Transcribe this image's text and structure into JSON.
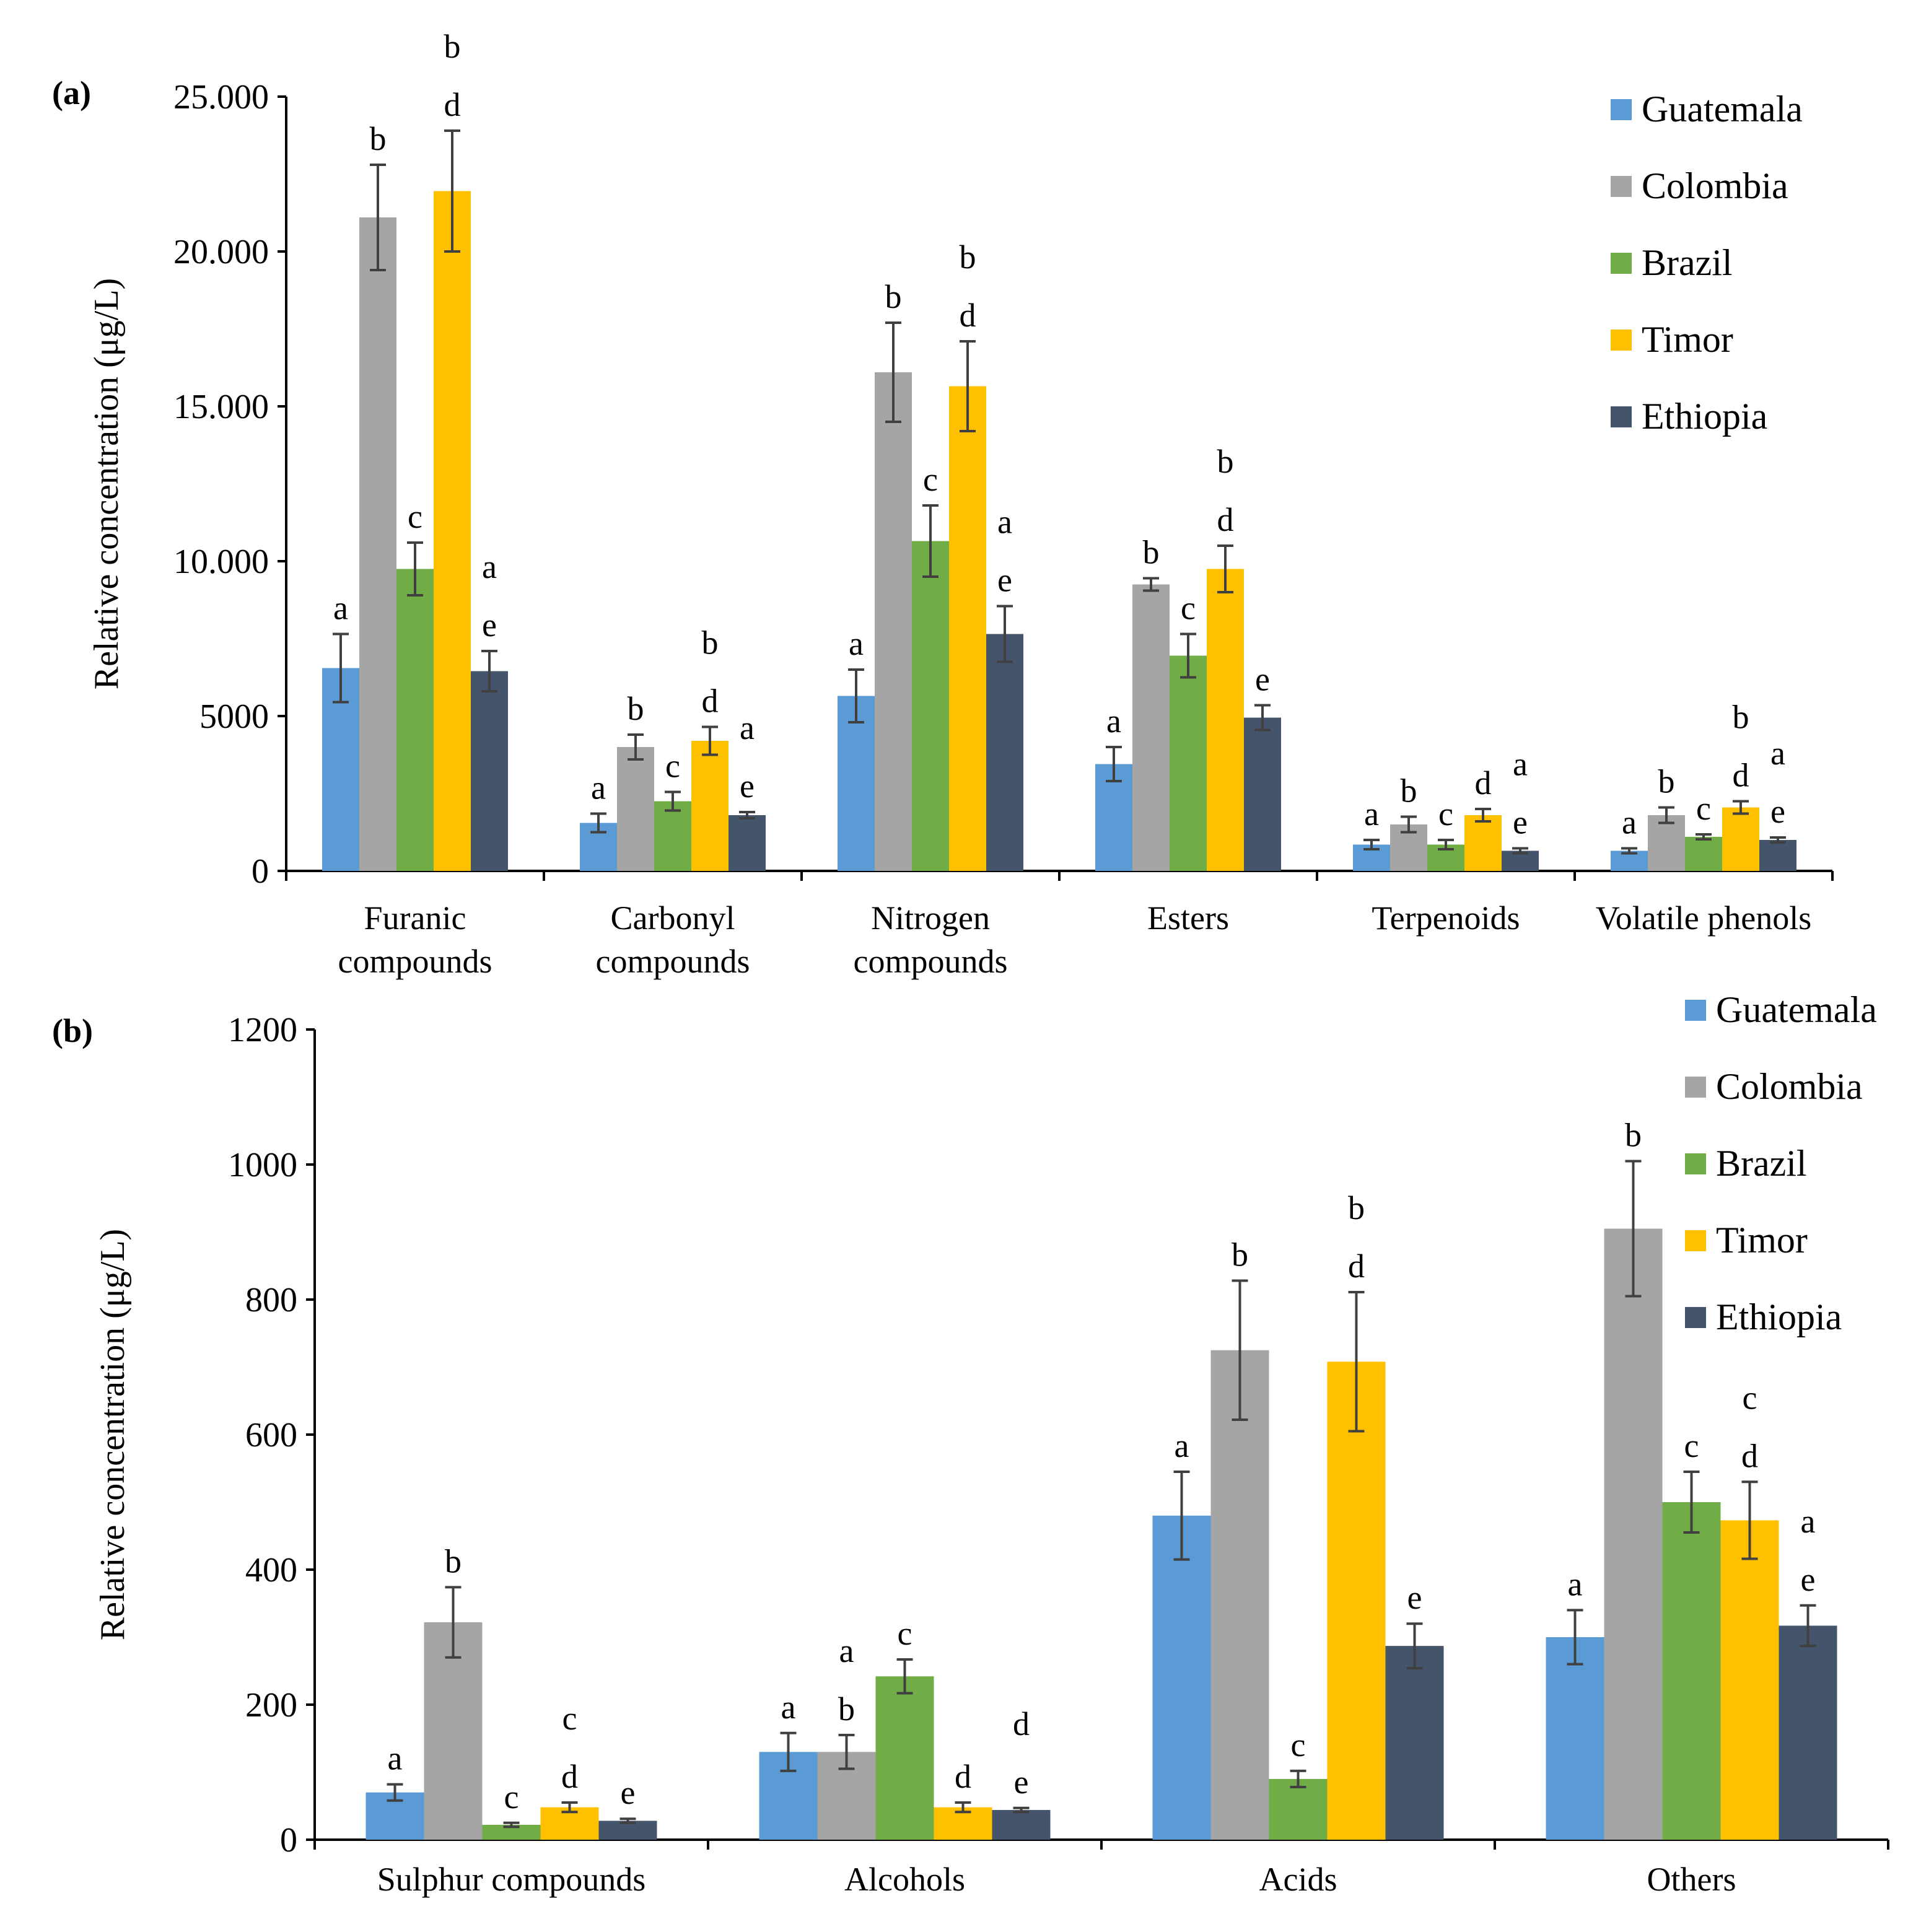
{
  "colors": {
    "Guatemala": "#5b9bd5",
    "Colombia": "#a5a5a5",
    "Brazil": "#70ad47",
    "Timor": "#ffc000",
    "Ethiopia": "#44546a"
  },
  "chart_data": [
    {
      "type": "bar",
      "panel": "(a)",
      "ylabel": "Relative concentration (μg/L)",
      "ylim": [
        0,
        25000
      ],
      "yticks": [
        {
          "value": 0,
          "label": "0"
        },
        {
          "value": 5000,
          "label": "5000"
        },
        {
          "value": 10000,
          "label": "10.000"
        },
        {
          "value": 15000,
          "label": "15.000"
        },
        {
          "value": 20000,
          "label": "20.000"
        },
        {
          "value": 25000,
          "label": "25.000"
        }
      ],
      "legend": [
        "Guatemala",
        "Colombia",
        "Brazil",
        "Timor",
        "Ethiopia"
      ],
      "legend_position": "top-right",
      "categories": [
        [
          "Furanic",
          "compounds"
        ],
        [
          "Carbonyl",
          "compounds"
        ],
        [
          "Nitrogen",
          "compounds"
        ],
        [
          "Esters"
        ],
        [
          "Terpenoids"
        ],
        [
          "Volatile phenols"
        ]
      ],
      "series": [
        {
          "name": "Guatemala",
          "values": [
            6550,
            1550,
            5650,
            3450,
            850,
            650
          ],
          "errors": [
            1100,
            300,
            850,
            550,
            150,
            80
          ],
          "letters": [
            "a",
            "a",
            "a",
            "a",
            "a",
            "a"
          ]
        },
        {
          "name": "Colombia",
          "values": [
            21100,
            4000,
            16100,
            9250,
            1500,
            1800
          ],
          "errors": [
            1700,
            400,
            1600,
            200,
            250,
            250
          ],
          "letters": [
            "b",
            "b",
            "b",
            "b",
            "b",
            "b"
          ]
        },
        {
          "name": "Brazil",
          "values": [
            9750,
            2250,
            10650,
            6950,
            850,
            1100
          ],
          "errors": [
            850,
            300,
            1150,
            700,
            150,
            80
          ],
          "letters": [
            "c",
            "c",
            "c",
            "c",
            "c",
            "c"
          ]
        },
        {
          "name": "Timor",
          "values": [
            21950,
            4200,
            15650,
            9750,
            1800,
            2050
          ],
          "errors": [
            1950,
            450,
            1450,
            750,
            200,
            200
          ],
          "letters": [
            "b d",
            "b d",
            "b d",
            "b d",
            "d",
            "b d"
          ]
        },
        {
          "name": "Ethiopia",
          "values": [
            6450,
            1800,
            7650,
            4950,
            650,
            1000
          ],
          "errors": [
            650,
            100,
            900,
            400,
            80,
            80
          ],
          "letters": [
            "a e",
            "a e",
            "a e",
            "e",
            "a e",
            "a e"
          ]
        }
      ]
    },
    {
      "type": "bar",
      "panel": "(b)",
      "ylabel": "Relative concentration (μg/L)",
      "ylim": [
        0,
        1200
      ],
      "yticks": [
        {
          "value": 0,
          "label": "0"
        },
        {
          "value": 200,
          "label": "200"
        },
        {
          "value": 400,
          "label": "400"
        },
        {
          "value": 600,
          "label": "600"
        },
        {
          "value": 800,
          "label": "800"
        },
        {
          "value": 1000,
          "label": "1000"
        },
        {
          "value": 1200,
          "label": "1200"
        }
      ],
      "legend": [
        "Guatemala",
        "Colombia",
        "Brazil",
        "Timor",
        "Ethiopia"
      ],
      "legend_position": "top-right",
      "categories": [
        [
          "Sulphur compounds"
        ],
        [
          "Alcohols"
        ],
        [
          "Acids"
        ],
        [
          "Others"
        ]
      ],
      "series": [
        {
          "name": "Guatemala",
          "values": [
            70,
            130,
            480,
            300
          ],
          "errors": [
            12,
            28,
            65,
            40
          ],
          "letters": [
            "a",
            "a",
            "a",
            "a"
          ]
        },
        {
          "name": "Colombia",
          "values": [
            322,
            130,
            725,
            905
          ],
          "errors": [
            52,
            25,
            103,
            100
          ],
          "letters": [
            "b",
            "a b",
            "b",
            "b"
          ]
        },
        {
          "name": "Brazil",
          "values": [
            22,
            242,
            90,
            500
          ],
          "errors": [
            3,
            25,
            12,
            45
          ],
          "letters": [
            "c",
            "c",
            "c",
            "c"
          ]
        },
        {
          "name": "Timor",
          "values": [
            48,
            48,
            708,
            473
          ],
          "errors": [
            7,
            7,
            103,
            57
          ],
          "letters": [
            "c d",
            "d",
            "b d",
            "c d"
          ]
        },
        {
          "name": "Ethiopia",
          "values": [
            28,
            44,
            287,
            317
          ],
          "errors": [
            3,
            3,
            33,
            30
          ],
          "letters": [
            "e",
            "d e",
            "e",
            "a e"
          ]
        }
      ]
    }
  ]
}
